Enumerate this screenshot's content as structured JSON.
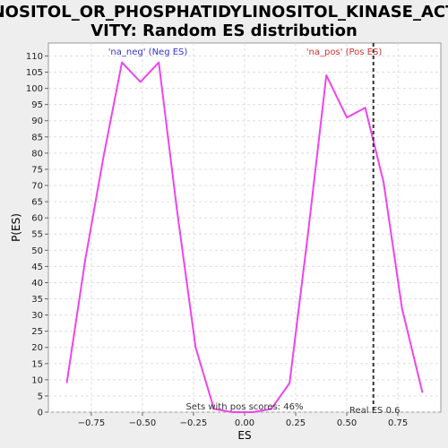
{
  "chart_data": {
    "type": "line",
    "title_lines": [
      "INOSITOL_OR_PHOSPHATIDYLINOSITOL_KINASE_ACTI",
      "VITY: Random ES distribution"
    ],
    "xlabel": "ES",
    "ylabel": "P(ES)",
    "xlim": [
      -0.96,
      0.96
    ],
    "ylim": [
      0,
      114
    ],
    "x_ticks": [
      -0.75,
      -0.5,
      -0.25,
      0.0,
      0.25,
      0.5,
      0.75
    ],
    "x_tick_labels": [
      "−0.75",
      "−0.50",
      "−0.25",
      "0.00",
      "0.25",
      "0.50",
      "0.75"
    ],
    "y_ticks": [
      0,
      5,
      10,
      15,
      20,
      25,
      30,
      35,
      40,
      45,
      50,
      55,
      60,
      65,
      70,
      75,
      80,
      85,
      90,
      95,
      100,
      105,
      110
    ],
    "grid": true,
    "series": [
      {
        "color": "#ee44ee",
        "x": [
          -0.87,
          -0.78,
          -0.69,
          -0.6,
          -0.51,
          -0.42,
          -0.33,
          -0.24,
          -0.15,
          -0.06,
          0.04,
          0.13,
          0.22,
          0.31,
          0.4,
          0.5,
          0.59,
          0.68,
          0.77,
          0.87
        ],
        "y": [
          9,
          47,
          79,
          108,
          102,
          108,
          62,
          20,
          1,
          0,
          0,
          1,
          9,
          55,
          104,
          91,
          94,
          71,
          32,
          6
        ]
      }
    ],
    "annotations": {
      "neg_label": "'na_neg' (Neg ES)",
      "neg_color": "#3333cc",
      "pos_label": "'na_pos' (Pos ES)",
      "pos_color": "#cc3333",
      "pos_scores_label": "Sets with pos scores: 46%",
      "real_es_label": "Real ES 0.6",
      "real_es_value": 0.63
    }
  }
}
